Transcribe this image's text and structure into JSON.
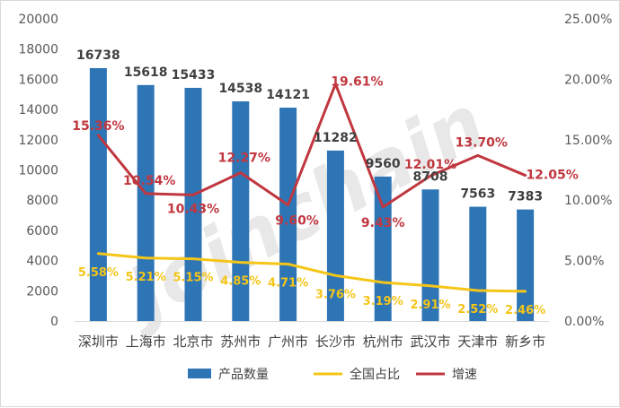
{
  "watermark": "Joinchain",
  "chart_data": {
    "type": "bar",
    "categories": [
      "深圳市",
      "上海市",
      "北京市",
      "苏州市",
      "广州市",
      "长沙市",
      "杭州市",
      "武汉市",
      "天津市",
      "新乡市"
    ],
    "series": [
      {
        "name": "产品数量",
        "type": "bar",
        "axis": "left",
        "color": "#2e75b6",
        "values": [
          16738,
          15618,
          15433,
          14538,
          14121,
          11282,
          9560,
          8708,
          7563,
          7383
        ],
        "labels": [
          "16738",
          "15618",
          "15433",
          "14538",
          "14121",
          "11282",
          "9560",
          "8708",
          "7563",
          "7383"
        ]
      },
      {
        "name": "全国占比",
        "type": "line",
        "axis": "right",
        "color": "#f5c518",
        "values": [
          5.58,
          5.21,
          5.15,
          4.85,
          4.71,
          3.76,
          3.19,
          2.91,
          2.52,
          2.46
        ],
        "labels": [
          "5.58%",
          "5.21%",
          "5.15%",
          "4.85%",
          "4.71%",
          "3.76%",
          "3.19%",
          "2.91%",
          "2.52%",
          "2.46%"
        ]
      },
      {
        "name": "增速",
        "type": "line",
        "axis": "right",
        "color": "#c0373f",
        "values": [
          15.36,
          10.54,
          10.43,
          12.27,
          9.6,
          19.61,
          9.43,
          12.01,
          13.7,
          12.05
        ],
        "labels": [
          "15.36%",
          "10.54%",
          "10.43%",
          "12.27%",
          "9.60%",
          "19.61%",
          "9.43%",
          "12.01%",
          "13.70%",
          "12.05%"
        ]
      }
    ],
    "y_left": {
      "min": 0,
      "max": 20000,
      "step": 2000,
      "tick_labels": [
        "0",
        "2000",
        "4000",
        "6000",
        "8000",
        "10000",
        "12000",
        "14000",
        "16000",
        "18000",
        "20000"
      ]
    },
    "y_right": {
      "min": 0,
      "max": 25,
      "step": 5,
      "tick_labels": [
        "0.00%",
        "5.00%",
        "10.00%",
        "15.00%",
        "20.00%",
        "25.00%"
      ]
    },
    "grid": false,
    "legend": {
      "position": "bottom",
      "entries": [
        "产品数量",
        "全国占比",
        "增速"
      ]
    }
  }
}
